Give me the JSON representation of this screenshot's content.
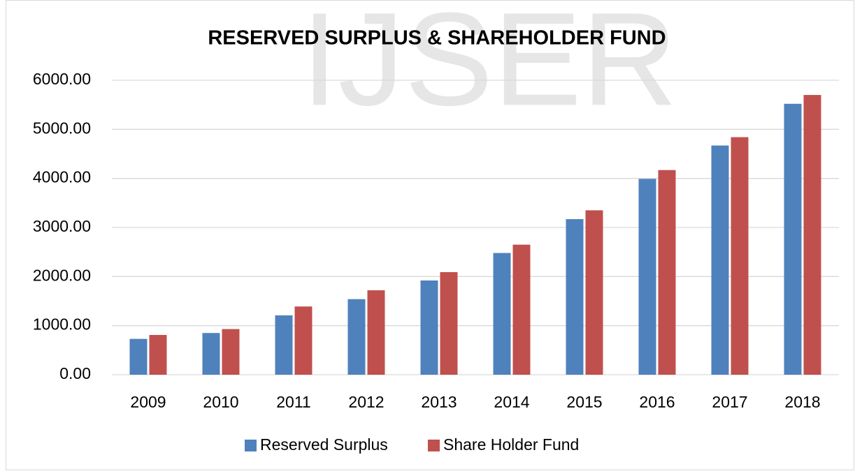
{
  "watermark": "IJSER",
  "chart_data": {
    "type": "bar",
    "title": "RESERVED  SURPLUS & SHAREHOLDER FUND",
    "categories": [
      "2009",
      "2010",
      "2011",
      "2012",
      "2013",
      "2014",
      "2015",
      "2016",
      "2017",
      "2018"
    ],
    "series": [
      {
        "name": "Reserved Surplus",
        "color": "#4f81bd",
        "values": [
          730,
          850,
          1210,
          1540,
          1920,
          2480,
          3170,
          3990,
          4670,
          5520
        ]
      },
      {
        "name": "Share Holder Fund",
        "color": "#c0504d",
        "values": [
          810,
          930,
          1390,
          1720,
          2090,
          2650,
          3350,
          4170,
          4840,
          5700
        ]
      }
    ],
    "ylim": [
      0,
      6000
    ],
    "yticks": [
      {
        "value": 0,
        "label": "0.00"
      },
      {
        "value": 1000,
        "label": "1000.00"
      },
      {
        "value": 2000,
        "label": "2000.00"
      },
      {
        "value": 3000,
        "label": "3000.00"
      },
      {
        "value": 4000,
        "label": "4000.00"
      },
      {
        "value": 5000,
        "label": "5000.00"
      },
      {
        "value": 6000,
        "label": "6000.00"
      }
    ],
    "grid": true,
    "legend": "bottom"
  }
}
